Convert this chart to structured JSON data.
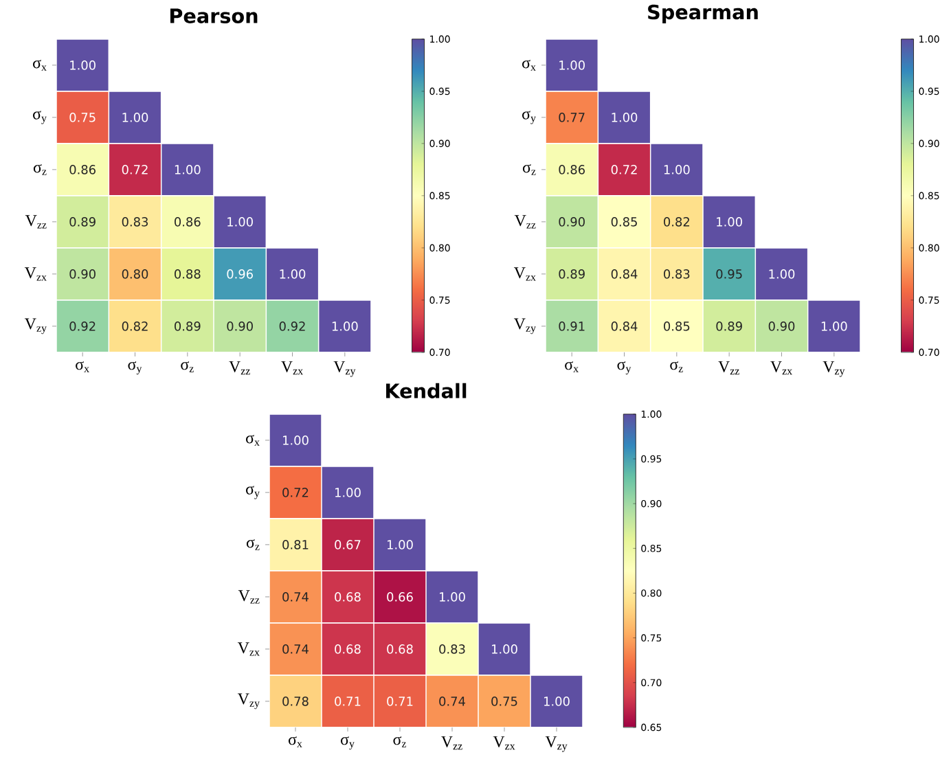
{
  "chart_data": [
    {
      "type": "heatmap",
      "title": "Pearson",
      "categories": [
        "σ$_{x}$",
        "σ$_{y}$",
        "σ$_{z}$",
        "V$_{zz}$",
        "V$_{zx}$",
        "V$_{zy}$"
      ],
      "y_categories": [
        "σ$_{x}$",
        "σ$_{y}$",
        "σ$_{z}$",
        "V$_{zz}$",
        "V$_{zx}$",
        "V$_{zy}$"
      ],
      "cells": [
        [
          1.0,
          null,
          null,
          null,
          null,
          null
        ],
        [
          0.75,
          1.0,
          null,
          null,
          null,
          null
        ],
        [
          0.86,
          0.72,
          1.0,
          null,
          null,
          null
        ],
        [
          0.89,
          0.83,
          0.86,
          1.0,
          null,
          null
        ],
        [
          0.9,
          0.8,
          0.88,
          0.96,
          1.0,
          null
        ],
        [
          0.92,
          0.82,
          0.89,
          0.9,
          0.92,
          1.0
        ]
      ],
      "cell_labels": [
        [
          "1.00",
          null,
          null,
          null,
          null,
          null
        ],
        [
          "0.75",
          "1.00",
          null,
          null,
          null,
          null
        ],
        [
          "0.86",
          "0.72",
          "1.00",
          null,
          null,
          null
        ],
        [
          "0.89",
          "0.83",
          "0.86",
          "1.00",
          null,
          null
        ],
        [
          "0.90",
          "0.80",
          "0.88",
          "0.96",
          "1.00",
          null
        ],
        [
          "0.92",
          "0.82",
          "0.89",
          "0.90",
          "0.92",
          "1.00"
        ]
      ],
      "clim": [
        0.7,
        1.0
      ],
      "cticks": [
        {
          "value": 0.7,
          "label": "0.70"
        },
        {
          "value": 0.75,
          "label": "0.75"
        },
        {
          "value": 0.8,
          "label": "0.80"
        },
        {
          "value": 0.85,
          "label": "0.85"
        },
        {
          "value": 0.9,
          "label": "0.90"
        },
        {
          "value": 0.95,
          "label": "0.95"
        },
        {
          "value": 1.0,
          "label": "1.00"
        }
      ]
    },
    {
      "type": "heatmap",
      "title": "Spearman",
      "categories": [
        "σ$_{x}$",
        "σ$_{y}$",
        "σ$_{z}$",
        "V$_{zz}$",
        "V$_{zx}$",
        "V$_{zy}$"
      ],
      "y_categories": [
        "σ$_{x}$",
        "σ$_{y}$",
        "σ$_{z}$",
        "V$_{zz}$",
        "V$_{zx}$",
        "V$_{zy}$"
      ],
      "cells": [
        [
          1.0,
          null,
          null,
          null,
          null,
          null
        ],
        [
          0.77,
          1.0,
          null,
          null,
          null,
          null
        ],
        [
          0.86,
          0.72,
          1.0,
          null,
          null,
          null
        ],
        [
          0.9,
          0.85,
          0.82,
          1.0,
          null,
          null
        ],
        [
          0.89,
          0.84,
          0.83,
          0.95,
          1.0,
          null
        ],
        [
          0.91,
          0.84,
          0.85,
          0.89,
          0.9,
          1.0
        ]
      ],
      "cell_labels": [
        [
          "1.00",
          null,
          null,
          null,
          null,
          null
        ],
        [
          "0.77",
          "1.00",
          null,
          null,
          null,
          null
        ],
        [
          "0.86",
          "0.72",
          "1.00",
          null,
          null,
          null
        ],
        [
          "0.90",
          "0.85",
          "0.82",
          "1.00",
          null,
          null
        ],
        [
          "0.89",
          "0.84",
          "0.83",
          "0.95",
          "1.00",
          null
        ],
        [
          "0.91",
          "0.84",
          "0.85",
          "0.89",
          "0.90",
          "1.00"
        ]
      ],
      "clim": [
        0.7,
        1.0
      ],
      "cticks": [
        {
          "value": 0.7,
          "label": "0.70"
        },
        {
          "value": 0.75,
          "label": "0.75"
        },
        {
          "value": 0.8,
          "label": "0.80"
        },
        {
          "value": 0.85,
          "label": "0.85"
        },
        {
          "value": 0.9,
          "label": "0.90"
        },
        {
          "value": 0.95,
          "label": "0.95"
        },
        {
          "value": 1.0,
          "label": "1.00"
        }
      ]
    },
    {
      "type": "heatmap",
      "title": "Kendall",
      "categories": [
        "σ$_{x}$",
        "σ$_{y}$",
        "σ$_{z}$",
        "V$_{zz}$",
        "V$_{zx}$",
        "V$_{zy}$"
      ],
      "y_categories": [
        "σ$_{x}$",
        "σ$_{y}$",
        "σ$_{z}$",
        "V$_{zz}$",
        "V$_{zx}$",
        "V$_{zy}$"
      ],
      "cells": [
        [
          1.0,
          null,
          null,
          null,
          null,
          null
        ],
        [
          0.72,
          1.0,
          null,
          null,
          null,
          null
        ],
        [
          0.81,
          0.67,
          1.0,
          null,
          null,
          null
        ],
        [
          0.74,
          0.68,
          0.66,
          1.0,
          null,
          null
        ],
        [
          0.74,
          0.68,
          0.68,
          0.83,
          1.0,
          null
        ],
        [
          0.78,
          0.71,
          0.71,
          0.74,
          0.75,
          1.0
        ]
      ],
      "cell_labels": [
        [
          "1.00",
          null,
          null,
          null,
          null,
          null
        ],
        [
          "0.72",
          "1.00",
          null,
          null,
          null,
          null
        ],
        [
          "0.81",
          "0.67",
          "1.00",
          null,
          null,
          null
        ],
        [
          "0.74",
          "0.68",
          "0.66",
          "1.00",
          null,
          null
        ],
        [
          "0.74",
          "0.68",
          "0.68",
          "0.83",
          "1.00",
          null
        ],
        [
          "0.78",
          "0.71",
          "0.71",
          "0.74",
          "0.75",
          "1.00"
        ]
      ],
      "clim": [
        0.65,
        1.0
      ],
      "cticks": [
        {
          "value": 0.65,
          "label": "0.65"
        },
        {
          "value": 0.7,
          "label": "0.70"
        },
        {
          "value": 0.75,
          "label": "0.75"
        },
        {
          "value": 0.8,
          "label": "0.80"
        },
        {
          "value": 0.85,
          "label": "0.85"
        },
        {
          "value": 0.9,
          "label": "0.90"
        },
        {
          "value": 0.95,
          "label": "0.95"
        },
        {
          "value": 1.0,
          "label": "1.00"
        }
      ]
    }
  ]
}
